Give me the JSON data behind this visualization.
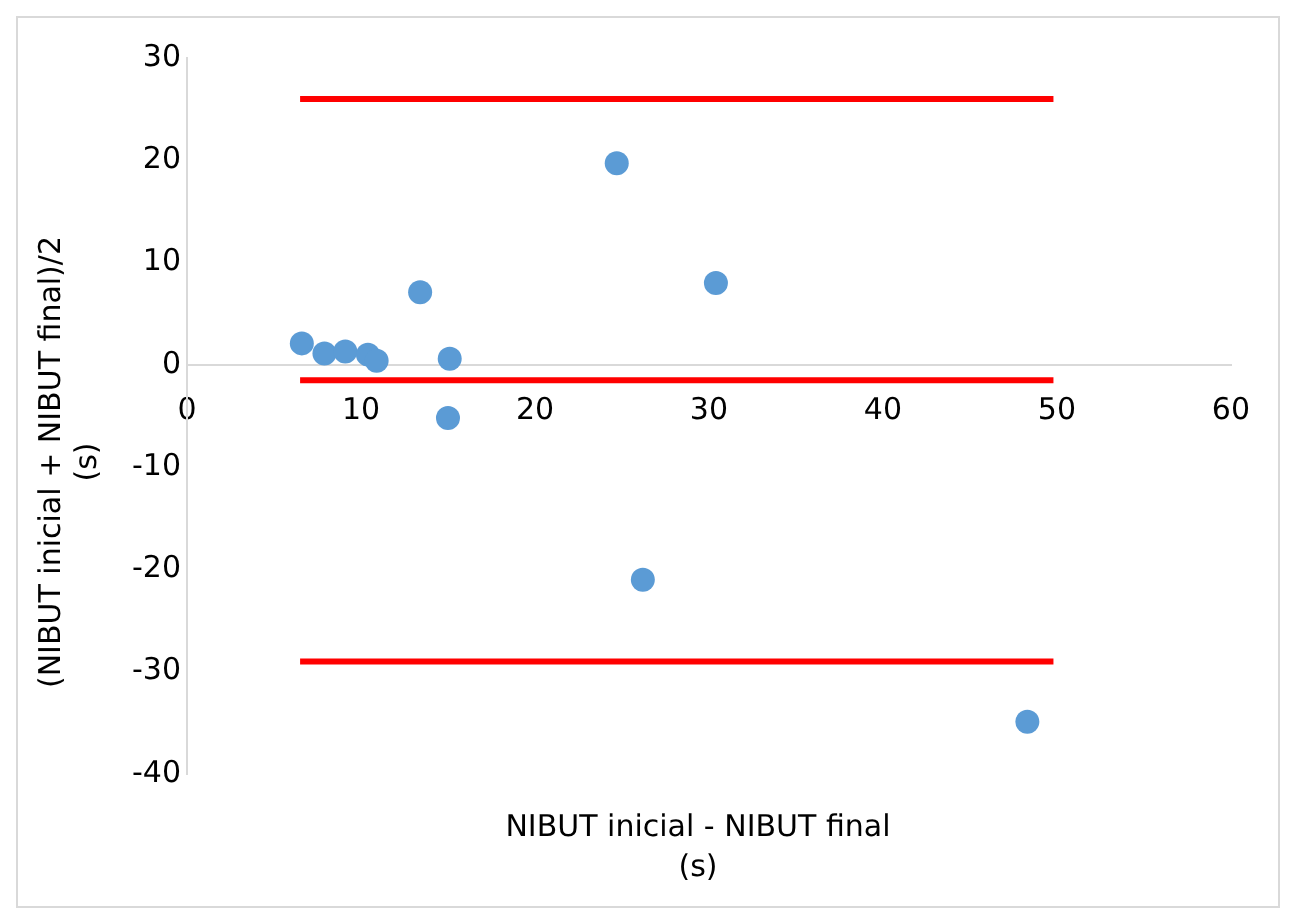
{
  "chart_data": {
    "type": "scatter",
    "xlabel": "NIBUT inicial - NIBUT final\n(s)",
    "ylabel": "(NIBUT inicial + NIBUT final)/2\n(s)",
    "xlim": [
      0,
      60
    ],
    "xticks": [
      0,
      10,
      20,
      30,
      40,
      50,
      60
    ],
    "ylim": [
      -40,
      30
    ],
    "yticks": [
      -40,
      -30,
      -20,
      -10,
      0,
      10,
      20,
      30
    ],
    "grid": false,
    "legend": false,
    "marker": "circle",
    "series": [
      {
        "color": "#5b9bd5",
        "x": [
          6.6,
          7.9,
          9.1,
          10.4,
          10.9,
          13.4,
          15.1,
          15.0,
          24.7,
          30.4,
          26.2,
          48.3
        ],
        "values": [
          2.1,
          1.1,
          1.3,
          1.0,
          0.4,
          7.1,
          0.6,
          -5.2,
          19.7,
          8.0,
          -21.0,
          -34.9
        ]
      },
      {
        "type": "line",
        "marker": "none",
        "color": "#ff0000",
        "x": [
          6.5,
          49.8
        ],
        "values": [
          26,
          26
        ]
      },
      {
        "type": "line",
        "marker": "none",
        "color": "#ff0000",
        "x": [
          6.5,
          49.8
        ],
        "values": [
          -1.5,
          -1.5
        ]
      },
      {
        "type": "line",
        "marker": "none",
        "color": "#ff0000",
        "x": [
          6.5,
          49.8
        ],
        "values": [
          -29,
          -29
        ]
      }
    ]
  }
}
